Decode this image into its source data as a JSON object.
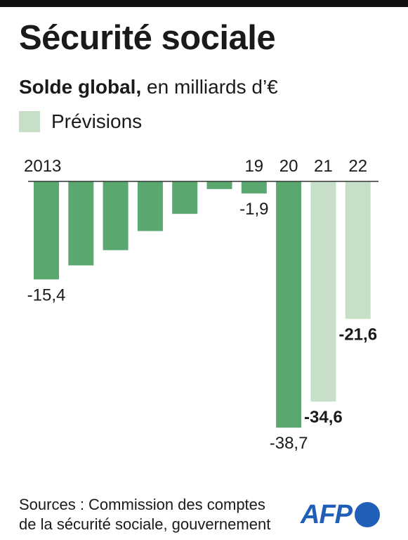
{
  "title": "Sécurité sociale",
  "subtitle_bold": "Solde global,",
  "subtitle_rest": " en milliards d’€",
  "legend": {
    "label": "Prévisions",
    "color": "#c7dfc6"
  },
  "colors": {
    "actual": "#5aa76f",
    "forecast": "#c7dfc6",
    "baseline": "#333333"
  },
  "chart_data": {
    "type": "bar",
    "categories": [
      "2013",
      "",
      "",
      "",
      "",
      "",
      "19",
      "20",
      "21",
      "22"
    ],
    "values": [
      -15.4,
      -13.2,
      -10.8,
      -7.8,
      -5.1,
      -1.2,
      -1.9,
      -38.7,
      -34.6,
      -21.6
    ],
    "forecast": [
      false,
      false,
      false,
      false,
      false,
      false,
      false,
      false,
      true,
      true
    ],
    "data_labels": [
      "-15,4",
      "",
      "",
      "",
      "",
      "",
      "-1,9",
      "-38,7",
      "-34,6",
      "-21,6"
    ],
    "bold_labels": [
      false,
      false,
      false,
      false,
      false,
      false,
      false,
      false,
      true,
      true
    ],
    "ylim": [
      -40,
      0
    ]
  },
  "source_lines": [
    "Sources : Commission des comptes",
    "de la sécurité sociale, gouvernement"
  ],
  "logo": "AFP"
}
